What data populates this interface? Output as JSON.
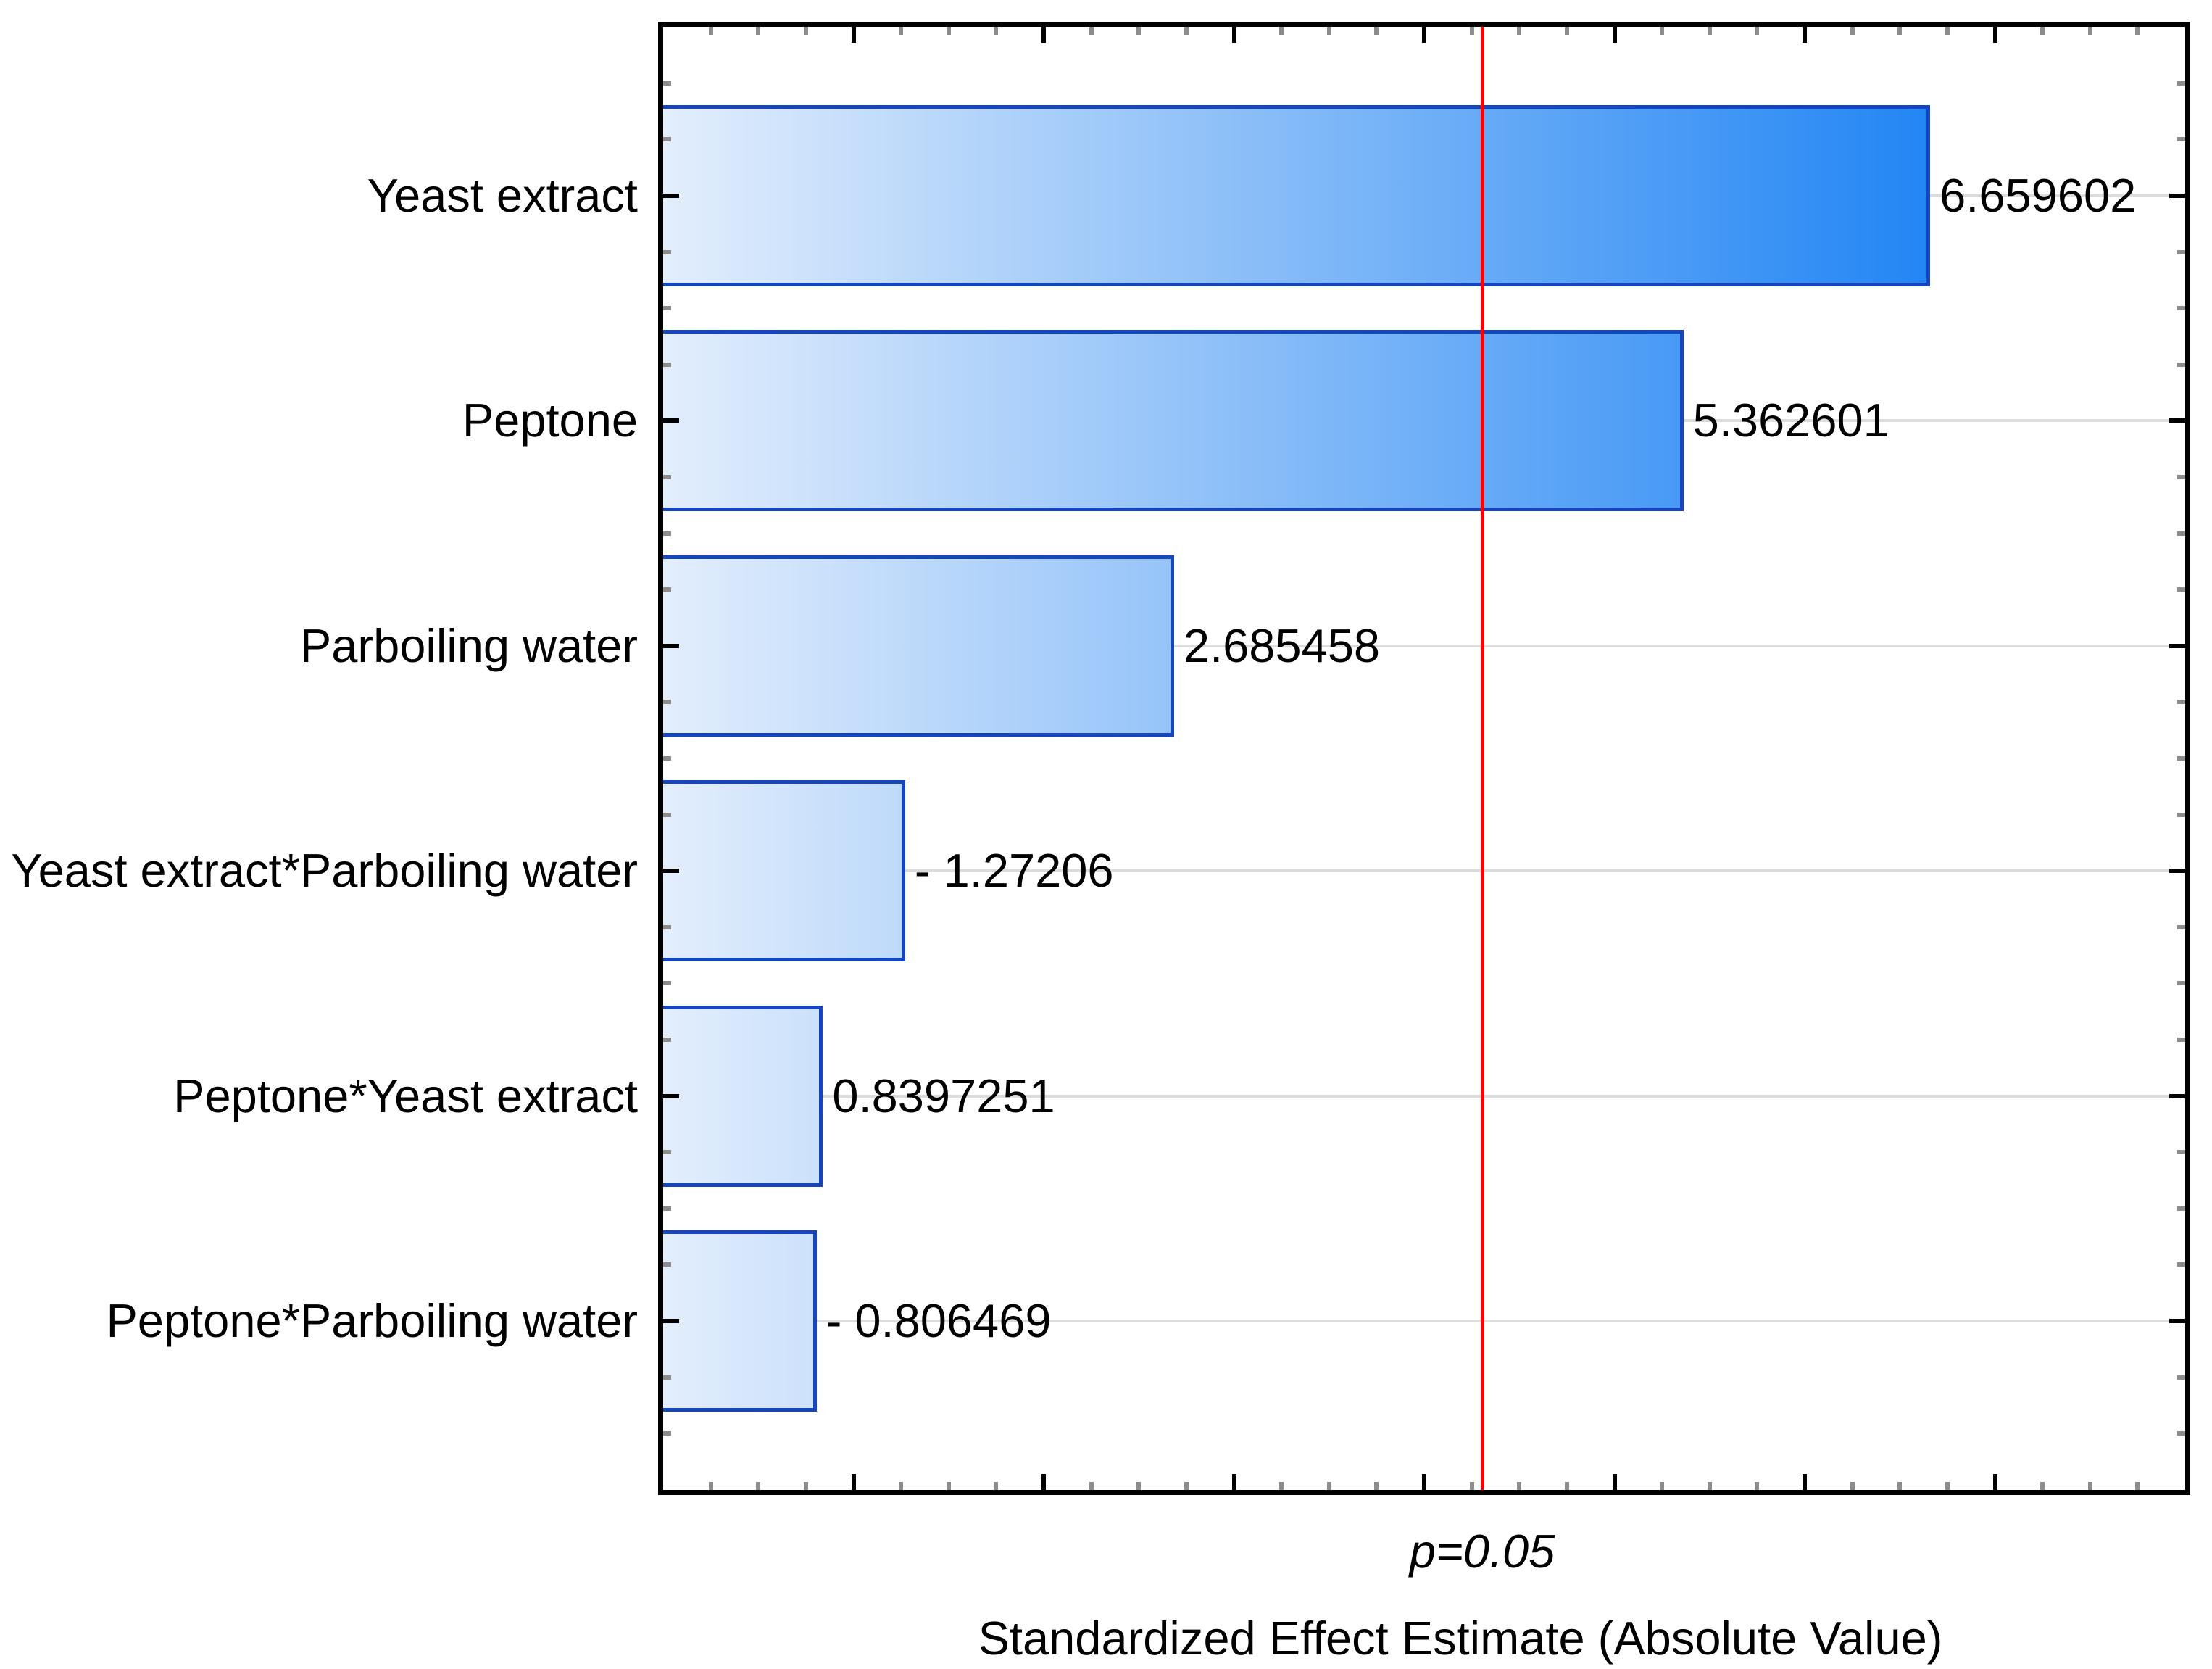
{
  "chart_data": {
    "type": "bar",
    "subtype": "pareto-chart-of-standardized-effects",
    "orientation": "horizontal",
    "title": "",
    "xlabel": "Standardized Effect Estimate (Absolute Value)",
    "ylabel": "",
    "categories": [
      "Yeast extract",
      "Peptone",
      "Parboiling water",
      "Yeast extract*Parboiling water",
      "Peptone*Yeast extract",
      "Peptone*Parboiling water"
    ],
    "values": [
      6.659602,
      5.362601,
      2.685458,
      -1.27206,
      0.8397251,
      -0.806469
    ],
    "value_labels": [
      "6.659602",
      "5.362601",
      "2.685458",
      "- 1.27206",
      "0.8397251",
      "- 0.806469"
    ],
    "xlim": [
      0,
      8
    ],
    "x_major_tick_step": 1,
    "x_minor_tick_step": 0.25,
    "grid": "horizontal gridline at each category center",
    "legend": "none",
    "reference_line": {
      "value": 4.303,
      "label": "p=0.05"
    },
    "colors": {
      "bar_gradient_start": "#e3eefc",
      "bar_gradient_end_at_max": "#2386f4",
      "bar_border": "#1646be",
      "gridline": "#dcdcdc",
      "reference_line": "#ff0000",
      "axis": "#000000",
      "major_tick": "#000000",
      "minor_tick": "#8c8c8c",
      "text": "#000000",
      "background": "#ffffff"
    }
  }
}
